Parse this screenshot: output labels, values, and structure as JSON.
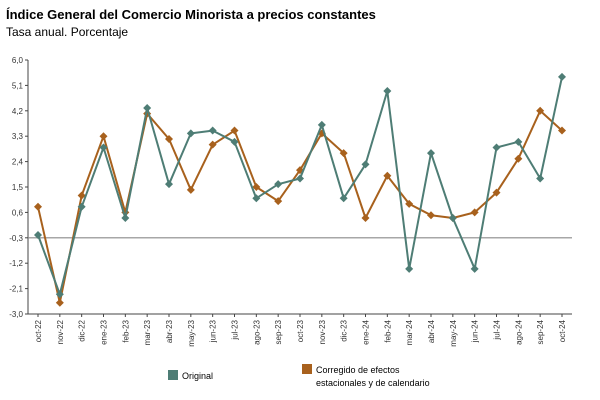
{
  "header": {
    "title": "Índice General del Comercio Minorista a precios constantes",
    "subtitle": "Tasa anual. Porcentaje"
  },
  "colors": {
    "original": "#4e7d75",
    "corregido": "#a8611d",
    "baseline": "#8a8a8a",
    "axis": "#444444"
  },
  "chart_data": {
    "type": "line",
    "title": "Índice General del Comercio Minorista a precios constantes",
    "subtitle": "Tasa anual. Porcentaje",
    "xlabel": "",
    "ylabel": "",
    "ylim": [
      -3.0,
      6.0
    ],
    "y_ticks": [
      "6,0",
      "5,1",
      "4,2",
      "3,3",
      "2,4",
      "1,5",
      "0,6",
      "-0,3",
      "-1,2",
      "-2,1",
      "-3,0"
    ],
    "y_tick_values": [
      6.0,
      5.1,
      4.2,
      3.3,
      2.4,
      1.5,
      0.6,
      -0.3,
      -1.2,
      -2.1,
      -3.0
    ],
    "categories": [
      "oct-22",
      "nov-22",
      "dic-22",
      "ene-23",
      "feb-23",
      "mar-23",
      "abr-23",
      "may-23",
      "jun-23",
      "jul-23",
      "ago-23",
      "sep-23",
      "oct-23",
      "nov-23",
      "dic-23",
      "ene-24",
      "feb-24",
      "mar-24",
      "abr-24",
      "may-24",
      "jun-24",
      "jul-24",
      "ago-24",
      "sep-24",
      "oct-24"
    ],
    "series": [
      {
        "name": "Original",
        "values": [
          -0.2,
          -2.3,
          0.8,
          2.9,
          0.4,
          4.3,
          1.6,
          3.4,
          3.5,
          3.1,
          1.1,
          1.6,
          1.8,
          3.7,
          1.1,
          2.3,
          4.9,
          -1.4,
          2.7,
          0.4,
          -1.4,
          2.9,
          3.1,
          1.8,
          5.4
        ]
      },
      {
        "name": "Corregido de efectos estacionales y de calendario",
        "values": [
          0.8,
          -2.6,
          1.2,
          3.3,
          0.6,
          4.1,
          3.2,
          1.4,
          3.0,
          3.5,
          1.5,
          1.0,
          2.1,
          3.4,
          2.7,
          0.4,
          1.9,
          0.9,
          0.5,
          0.4,
          0.6,
          1.3,
          2.5,
          4.2,
          3.5
        ]
      }
    ],
    "baseline_value": -0.3,
    "grid": false,
    "legend_position": "bottom"
  },
  "legend": {
    "original_label": "Original",
    "corregido_line1": "Corregido de efectos",
    "corregido_line2": "estacionales y de calendario"
  }
}
